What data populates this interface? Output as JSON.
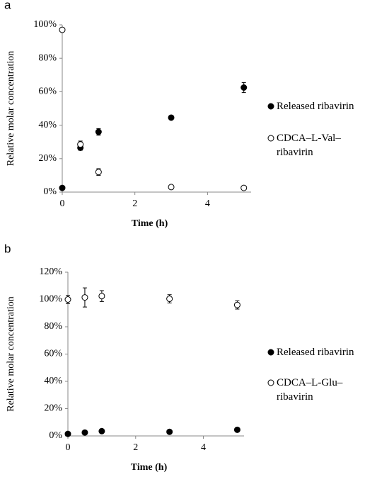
{
  "chart_data": [
    {
      "type": "scatter",
      "panel": "a",
      "xlabel": "Time (h)",
      "ylabel": "Relative molar concentration",
      "xlim": [
        0,
        5.2
      ],
      "xticks": [
        0,
        2,
        4
      ],
      "ylim": [
        0,
        100
      ],
      "yticks": [
        {
          "value": 0,
          "label": "0%"
        },
        {
          "value": 20,
          "label": "20%"
        },
        {
          "value": 40,
          "label": "40%"
        },
        {
          "value": 60,
          "label": "60%"
        },
        {
          "value": 80,
          "label": "80%"
        },
        {
          "value": 100,
          "label": "100%"
        }
      ],
      "x": [
        0,
        0.5,
        1,
        3,
        5
      ],
      "series": [
        {
          "name": "Released ribavirin",
          "color": "#000000",
          "marker": "filled",
          "values": [
            2.5,
            26.5,
            36,
            44.5,
            62.5
          ],
          "errors": [
            0.5,
            1.5,
            2,
            1,
            3
          ]
        },
        {
          "name": "CDCA–L-Val–ribavirin",
          "color": "#000000",
          "marker": "open",
          "values": [
            97,
            28.5,
            12,
            3,
            2.5
          ],
          "errors": [
            1,
            2,
            2,
            1,
            1
          ]
        }
      ]
    },
    {
      "type": "scatter",
      "panel": "b",
      "xlabel": "Time (h)",
      "ylabel": "Relative molar concentration",
      "xlim": [
        0,
        5.2
      ],
      "xticks": [
        0,
        2,
        4
      ],
      "ylim": [
        0,
        120
      ],
      "yticks": [
        {
          "value": 0,
          "label": "0%"
        },
        {
          "value": 20,
          "label": "20%"
        },
        {
          "value": 40,
          "label": "40%"
        },
        {
          "value": 60,
          "label": "60%"
        },
        {
          "value": 80,
          "label": "80%"
        },
        {
          "value": 100,
          "label": "100%"
        },
        {
          "value": 120,
          "label": "120%"
        }
      ],
      "x": [
        0,
        0.5,
        1,
        3,
        5
      ],
      "series": [
        {
          "name": "Released ribavirin",
          "color": "#000000",
          "marker": "filled",
          "values": [
            1.5,
            2.5,
            3.5,
            3,
            4.5
          ],
          "errors": [
            0.5,
            0.5,
            0.5,
            0.5,
            0.5
          ]
        },
        {
          "name": "CDCA–L-Glu–ribavirin",
          "color": "#000000",
          "marker": "open",
          "values": [
            100,
            101.5,
            102.5,
            100.5,
            96
          ],
          "errors": [
            3,
            7,
            4,
            3,
            3
          ]
        }
      ]
    }
  ]
}
